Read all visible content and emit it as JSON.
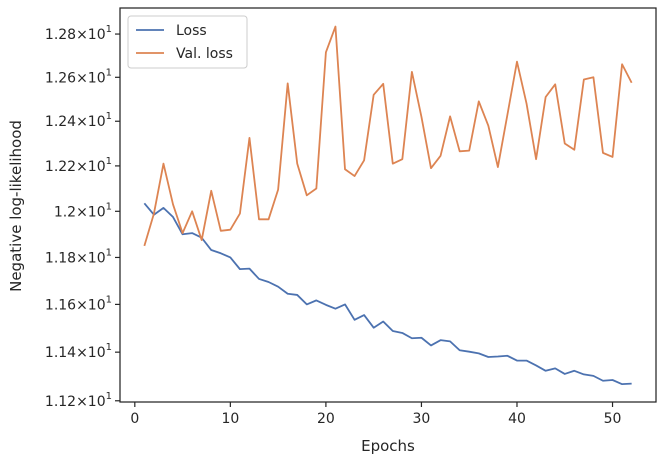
{
  "chart_data": {
    "type": "line",
    "title": "",
    "xlabel": "Epochs",
    "ylabel": "Negative log-likelihood",
    "xlim": [
      -1.55,
      54.55
    ],
    "ylim": [
      11.195,
      12.922
    ],
    "y_scale": "log",
    "grid": false,
    "legend_position": "top-left",
    "x_ticks": [
      0,
      10,
      20,
      30,
      40,
      50
    ],
    "x_tick_labels": [
      "0",
      "10",
      "20",
      "30",
      "40",
      "50"
    ],
    "y_ticks": [
      11.2,
      11.4,
      11.6,
      11.8,
      12.0,
      12.2,
      12.4,
      12.6,
      12.8
    ],
    "y_tick_mantissas": [
      "1.12",
      "1.14",
      "1.16",
      "1.18",
      "1.2",
      "1.22",
      "1.24",
      "1.26",
      "1.28"
    ],
    "y_tick_base": "10",
    "y_tick_exponent": "1",
    "y_tick_times": "×",
    "x": [
      1,
      2,
      3,
      4,
      5,
      6,
      7,
      8,
      9,
      10,
      11,
      12,
      13,
      14,
      15,
      16,
      17,
      18,
      19,
      20,
      21,
      22,
      23,
      24,
      25,
      26,
      27,
      28,
      29,
      30,
      31,
      32,
      33,
      34,
      35,
      36,
      37,
      38,
      39,
      40,
      41,
      42,
      43,
      44,
      45,
      46,
      47,
      48,
      49,
      50,
      51,
      52
    ],
    "series": [
      {
        "name": "Loss",
        "color": "#4c72b0",
        "values": [
          12.035,
          11.985,
          12.015,
          11.975,
          11.9,
          11.905,
          11.885,
          11.832,
          11.818,
          11.8,
          11.75,
          11.752,
          11.708,
          11.695,
          11.675,
          11.645,
          11.64,
          11.6,
          11.617,
          11.598,
          11.582,
          11.6,
          11.535,
          11.555,
          11.502,
          11.528,
          11.488,
          11.48,
          11.458,
          11.46,
          11.428,
          11.45,
          11.445,
          11.408,
          11.402,
          11.395,
          11.38,
          11.382,
          11.385,
          11.365,
          11.365,
          11.345,
          11.323,
          11.333,
          11.31,
          11.323,
          11.308,
          11.302,
          11.282,
          11.285,
          11.268,
          11.27
        ]
      },
      {
        "name": "Val. loss",
        "color": "#dd8452",
        "values": [
          11.85,
          11.99,
          12.21,
          12.03,
          11.905,
          12.0,
          11.875,
          12.09,
          11.915,
          11.92,
          11.99,
          12.325,
          11.965,
          11.965,
          12.095,
          12.572,
          12.21,
          12.07,
          12.1,
          12.715,
          12.835,
          12.185,
          12.155,
          12.225,
          12.52,
          12.57,
          12.21,
          12.23,
          12.625,
          12.42,
          12.19,
          12.245,
          12.422,
          12.265,
          12.268,
          12.49,
          12.38,
          12.195,
          12.43,
          12.672,
          12.48,
          12.23,
          12.51,
          12.568,
          12.3,
          12.272,
          12.59,
          12.6,
          12.258,
          12.24,
          12.66,
          12.575
        ]
      }
    ]
  }
}
